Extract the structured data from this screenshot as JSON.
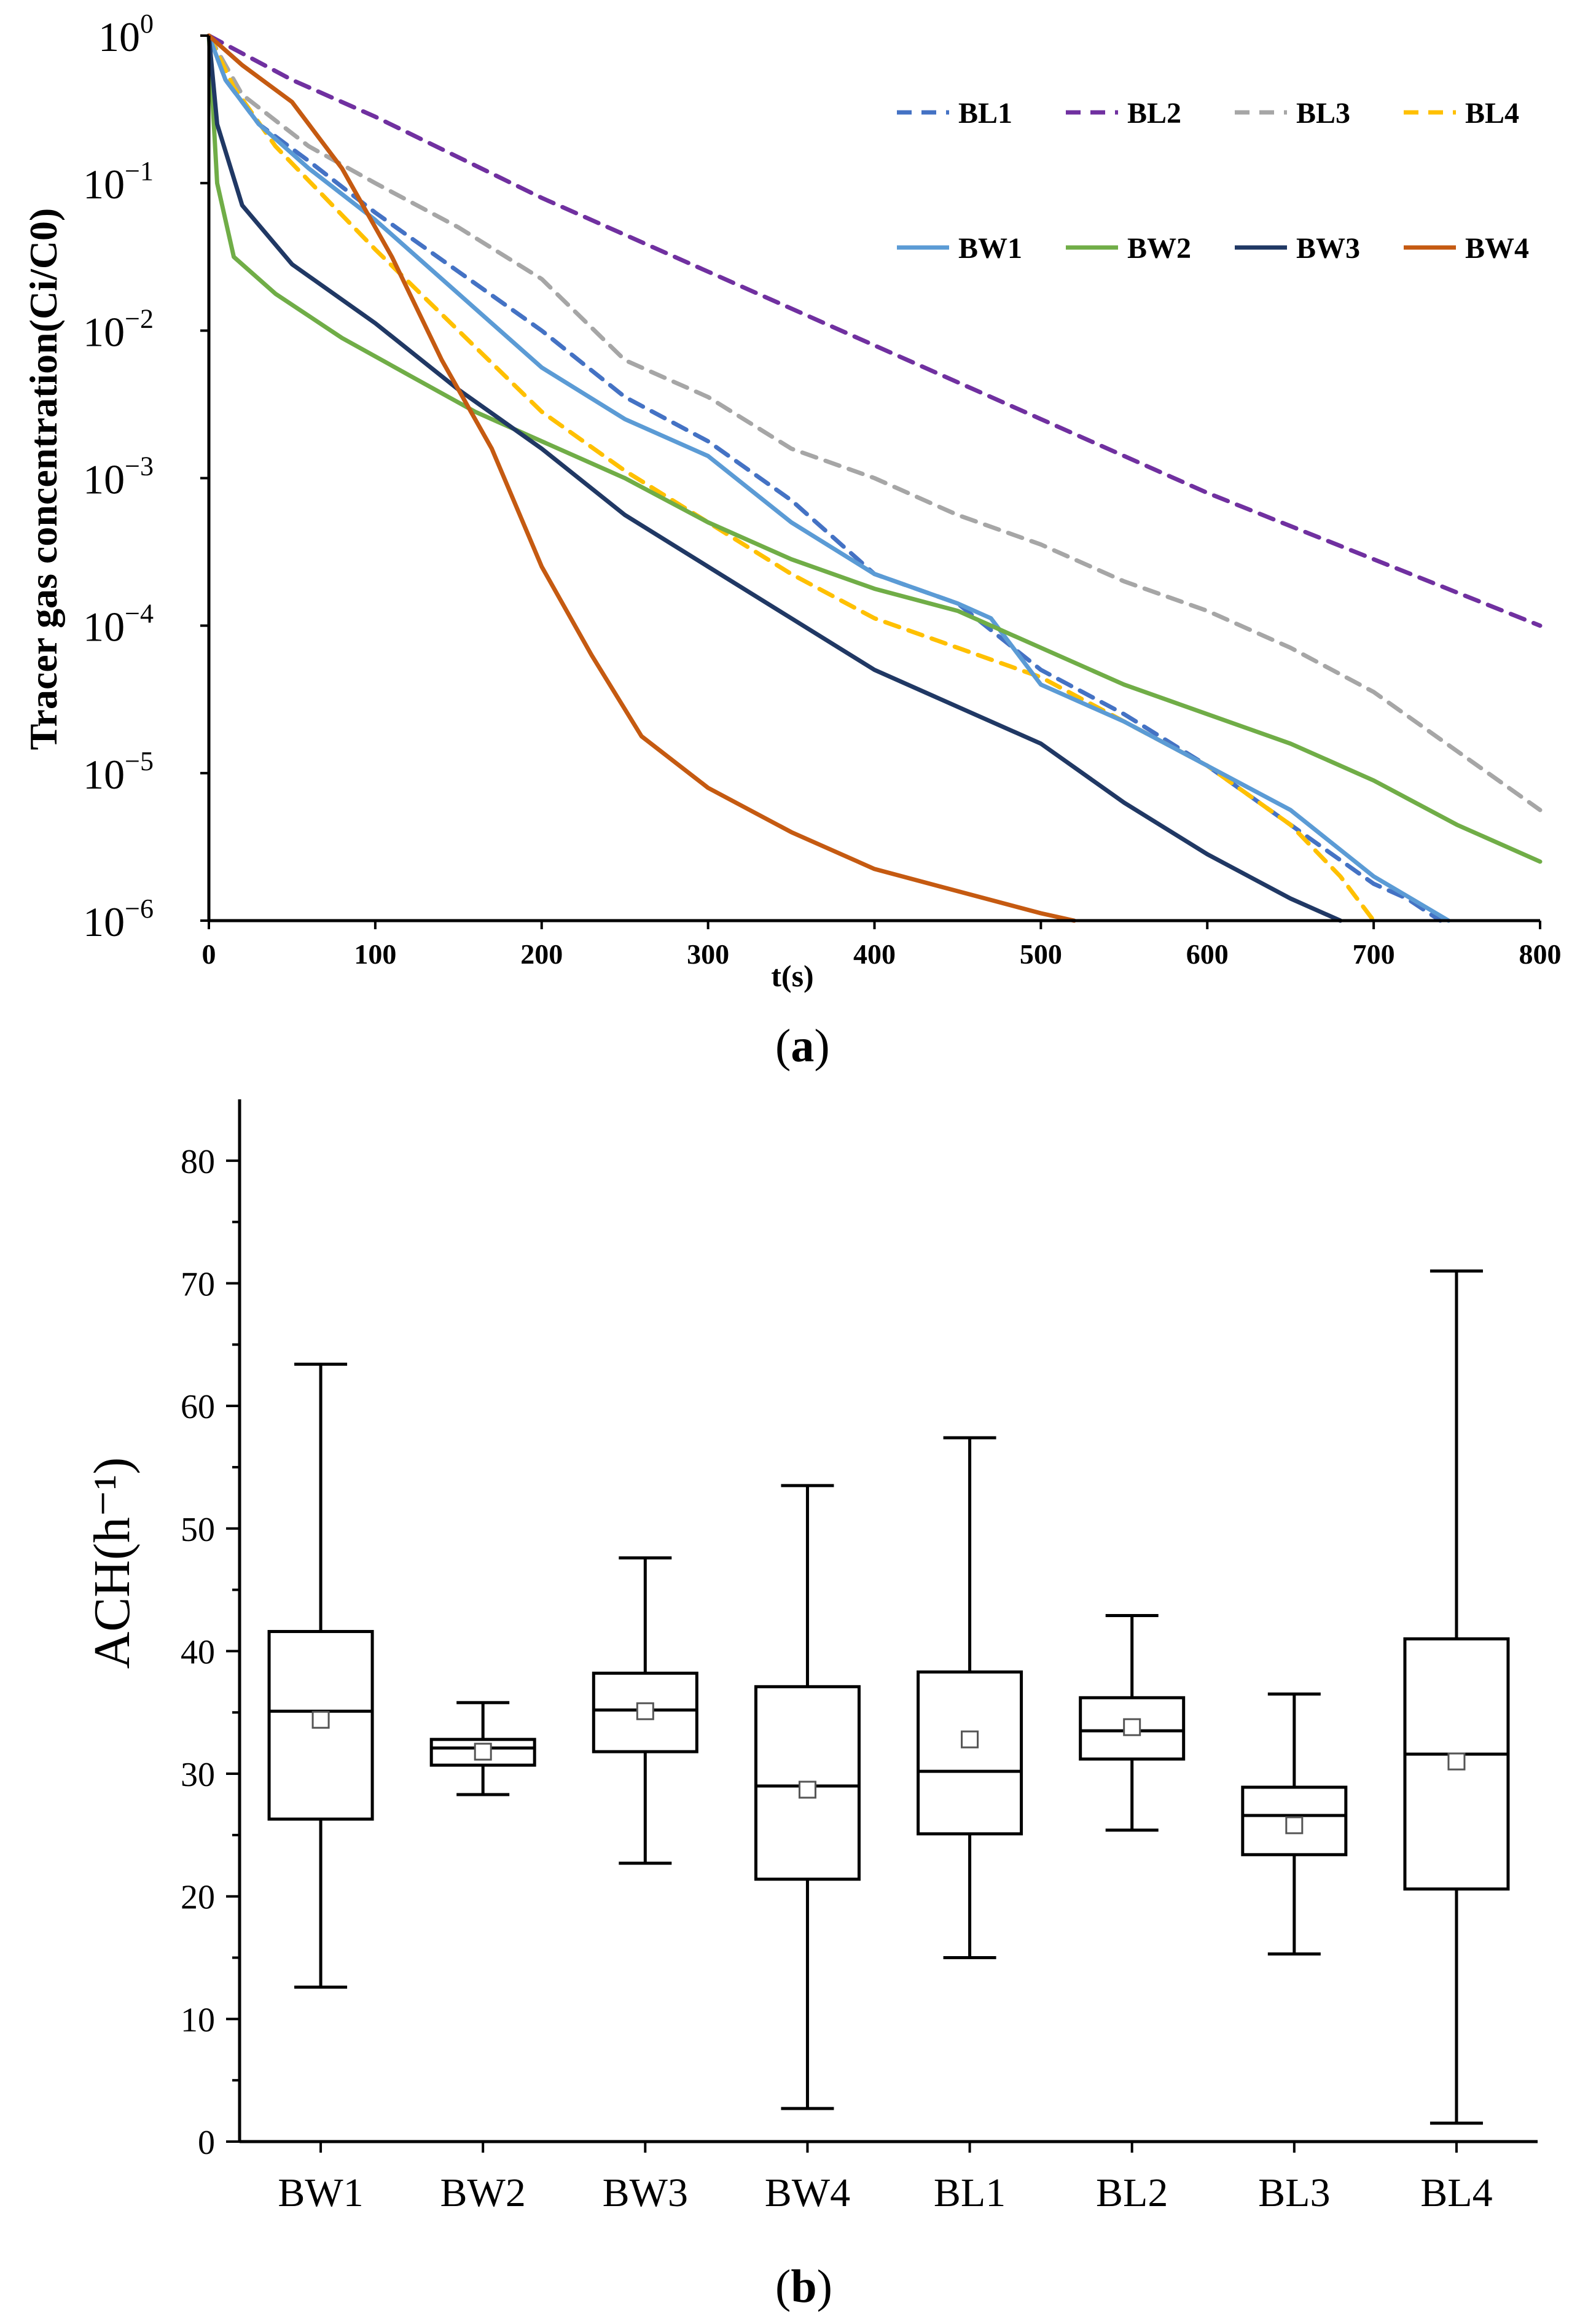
{
  "chart_data": [
    {
      "type": "line",
      "panel_label": "a",
      "xlabel": "t(s)",
      "ylabel": "Tracer gas concentration(Ci/C0)",
      "xlim": [
        0,
        800
      ],
      "ylim_log10": [
        -6,
        0
      ],
      "yscale": "log",
      "x_ticks": [
        0,
        100,
        200,
        300,
        400,
        500,
        600,
        700,
        800
      ],
      "y_tick_exponents": [
        0,
        -1,
        -2,
        -3,
        -4,
        -5,
        -6
      ],
      "y_tick_base": "10",
      "y_tick_exponent_labels": [
        "0",
        "−1",
        "−2",
        "−3",
        "−4",
        "−5",
        "−6"
      ],
      "legend_position": "top-right",
      "series": [
        {
          "name": "BL1",
          "color": "#4472c4",
          "dash": true,
          "x": [
            0,
            10,
            30,
            60,
            100,
            150,
            200,
            250,
            300,
            350,
            400,
            450,
            500,
            550,
            600,
            650,
            700,
            720,
            740
          ],
          "y": [
            0,
            -0.3,
            -0.6,
            -0.85,
            -1.2,
            -1.6,
            -2.0,
            -2.45,
            -2.75,
            -3.15,
            -3.65,
            -3.85,
            -4.3,
            -4.6,
            -4.95,
            -5.35,
            -5.75,
            -5.85,
            -6.0
          ]
        },
        {
          "name": "BL2",
          "color": "#7030a0",
          "dash": true,
          "x": [
            0,
            50,
            100,
            200,
            300,
            400,
            500,
            600,
            700,
            800
          ],
          "y": [
            0,
            -0.3,
            -0.55,
            -1.1,
            -1.6,
            -2.1,
            -2.6,
            -3.1,
            -3.55,
            -4.0
          ]
        },
        {
          "name": "BL3",
          "color": "#a6a6a6",
          "dash": true,
          "x": [
            0,
            20,
            60,
            100,
            150,
            200,
            250,
            300,
            350,
            400,
            450,
            500,
            550,
            600,
            650,
            700,
            750,
            800
          ],
          "y": [
            0,
            -0.4,
            -0.75,
            -1.0,
            -1.3,
            -1.65,
            -2.2,
            -2.45,
            -2.8,
            -3.0,
            -3.25,
            -3.45,
            -3.7,
            -3.9,
            -4.15,
            -4.45,
            -4.85,
            -5.25
          ]
        },
        {
          "name": "BL4",
          "color": "#ffc000",
          "dash": true,
          "x": [
            0,
            15,
            40,
            70,
            100,
            150,
            200,
            250,
            300,
            350,
            400,
            450,
            500,
            550,
            600,
            650,
            680,
            700
          ],
          "y": [
            0,
            -0.35,
            -0.75,
            -1.1,
            -1.45,
            -2.0,
            -2.55,
            -2.95,
            -3.3,
            -3.65,
            -3.95,
            -4.15,
            -4.35,
            -4.65,
            -4.95,
            -5.35,
            -5.7,
            -6.0
          ]
        },
        {
          "name": "BW1",
          "color": "#5b9bd5",
          "dash": false,
          "x": [
            0,
            10,
            30,
            60,
            100,
            150,
            200,
            250,
            300,
            350,
            400,
            450,
            470,
            500,
            550,
            600,
            650,
            700,
            745
          ],
          "y": [
            0,
            -0.3,
            -0.6,
            -0.9,
            -1.25,
            -1.75,
            -2.25,
            -2.6,
            -2.85,
            -3.3,
            -3.65,
            -3.85,
            -3.95,
            -4.4,
            -4.65,
            -4.95,
            -5.25,
            -5.7,
            -6.0
          ]
        },
        {
          "name": "BW2",
          "color": "#70ad47",
          "dash": false,
          "x": [
            0,
            5,
            15,
            40,
            80,
            120,
            160,
            200,
            250,
            300,
            350,
            400,
            450,
            500,
            550,
            600,
            650,
            700,
            750,
            800
          ],
          "y": [
            0,
            -1.0,
            -1.5,
            -1.75,
            -2.05,
            -2.3,
            -2.55,
            -2.75,
            -3.0,
            -3.3,
            -3.55,
            -3.75,
            -3.9,
            -4.15,
            -4.4,
            -4.6,
            -4.8,
            -5.05,
            -5.35,
            -5.6
          ]
        },
        {
          "name": "BW3",
          "color": "#203864",
          "dash": false,
          "x": [
            0,
            5,
            20,
            50,
            100,
            150,
            200,
            250,
            300,
            350,
            400,
            450,
            500,
            550,
            600,
            650,
            680
          ],
          "y": [
            0,
            -0.6,
            -1.15,
            -1.55,
            -1.95,
            -2.4,
            -2.8,
            -3.25,
            -3.6,
            -3.95,
            -4.3,
            -4.55,
            -4.8,
            -5.2,
            -5.55,
            -5.85,
            -6.0
          ]
        },
        {
          "name": "BW4",
          "color": "#c55a11",
          "dash": false,
          "x": [
            0,
            20,
            50,
            80,
            110,
            140,
            170,
            200,
            230,
            260,
            300,
            350,
            400,
            450,
            500,
            520
          ],
          "y": [
            0,
            -0.2,
            -0.45,
            -0.9,
            -1.5,
            -2.2,
            -2.8,
            -3.6,
            -4.2,
            -4.75,
            -5.1,
            -5.4,
            -5.65,
            -5.8,
            -5.95,
            -6.0
          ]
        }
      ]
    },
    {
      "type": "box",
      "panel_label": "b",
      "xlabel": "",
      "ylabel": "ACH(h⁻¹)",
      "ylim": [
        0,
        85
      ],
      "y_ticks": [
        0,
        10,
        20,
        30,
        40,
        50,
        60,
        70,
        80
      ],
      "categories": [
        "BW1",
        "BW2",
        "BW3",
        "BW4",
        "BL1",
        "BL2",
        "BL3",
        "BL4"
      ],
      "boxes": [
        {
          "min": 12.6,
          "q1": 26.3,
          "median": 35.1,
          "q3": 41.6,
          "max": 63.4,
          "mean": 34.4
        },
        {
          "min": 28.3,
          "q1": 30.7,
          "median": 32.1,
          "q3": 32.8,
          "max": 35.8,
          "mean": 31.8
        },
        {
          "min": 22.7,
          "q1": 31.8,
          "median": 35.2,
          "q3": 38.2,
          "max": 47.6,
          "mean": 35.1
        },
        {
          "min": 2.7,
          "q1": 21.4,
          "median": 29.0,
          "q3": 37.1,
          "max": 53.5,
          "mean": 28.7
        },
        {
          "min": 15.0,
          "q1": 25.1,
          "median": 30.2,
          "q3": 38.3,
          "max": 57.4,
          "mean": 32.8
        },
        {
          "min": 25.4,
          "q1": 31.2,
          "median": 33.5,
          "q3": 36.2,
          "max": 42.9,
          "mean": 33.8
        },
        {
          "min": 15.3,
          "q1": 23.4,
          "median": 26.6,
          "q3": 28.9,
          "max": 36.5,
          "mean": 25.8
        },
        {
          "min": 1.5,
          "q1": 20.6,
          "median": 31.6,
          "q3": 41.0,
          "max": 71.0,
          "mean": 31.0
        }
      ]
    }
  ]
}
